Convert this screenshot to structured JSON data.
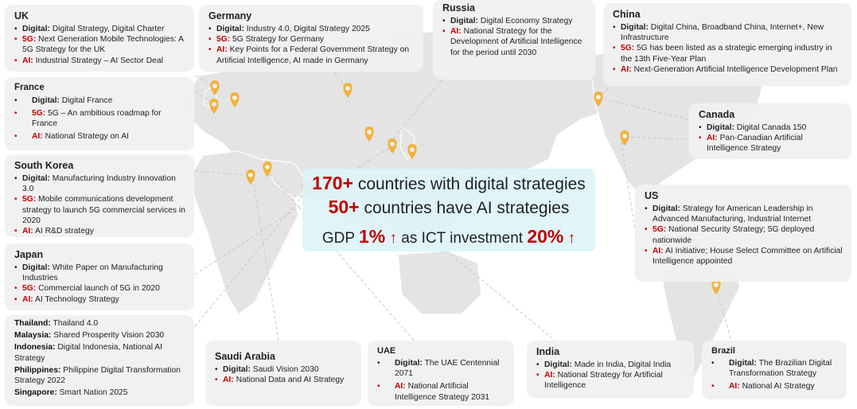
{
  "countries": {
    "uk": {
      "name": "UK",
      "items": [
        {
          "key": "Digital:",
          "text": "Digital Strategy, Digital Charter"
        },
        {
          "key": "5G:",
          "text": "Next Generation Mobile Technologies: A 5G Strategy for the UK"
        },
        {
          "key": "AI:",
          "text": "Industrial Strategy – AI Sector Deal"
        }
      ]
    },
    "germany": {
      "name": "Germany",
      "items": [
        {
          "key": "Digital:",
          "text": "Industry 4.0, Digital Strategy 2025"
        },
        {
          "key": "5G:",
          "text": "5G Strategy for Germany"
        },
        {
          "key": "AI:",
          "text": "Key Points for a Federal Government Strategy on Artificial Intelligence, AI made in Germany"
        }
      ]
    },
    "russia": {
      "name": "Russia",
      "items": [
        {
          "key": "Digital:",
          "text": "Digital Economy Strategy"
        },
        {
          "key": "AI:",
          "text": "National Strategy for the Development of Artificial Intelligence for the period until 2030"
        }
      ]
    },
    "china": {
      "name": "China",
      "items": [
        {
          "key": "Digital:",
          "text": "Digital China, Broadband China, Internet+, New Infrastructure"
        },
        {
          "key": "5G:",
          "text": "5G has been listed as a strategic emerging industry in the 13th Five-Year Plan"
        },
        {
          "key": "AI:",
          "text": "Next-Generation Artificial Intelligence Development Plan"
        }
      ]
    },
    "france": {
      "name": "France",
      "items": [
        {
          "key": "Digital:",
          "text": "Digital France"
        },
        {
          "key": "5G:",
          "text": "5G – An ambitious roadmap for France"
        },
        {
          "key": "AI:",
          "text": "National Strategy on AI"
        }
      ]
    },
    "canada": {
      "name": "Canada",
      "items": [
        {
          "key": "Digital:",
          "text": "Digital Canada 150"
        },
        {
          "key": "AI:",
          "text": "Pan-Canadian Artificial Intelligence Strategy"
        }
      ]
    },
    "south_korea": {
      "name": "South Korea",
      "items": [
        {
          "key": "Digital:",
          "text": "Manufacturing Industry Innovation 3.0"
        },
        {
          "key": "5G:",
          "text": "Mobile communications development strategy to launch 5G commercial services in 2020"
        },
        {
          "key": "AI:",
          "text": "AI R&D strategy"
        }
      ]
    },
    "us": {
      "name": "US",
      "items": [
        {
          "key": "Digital:",
          "text": "Strategy for American Leadership in Advanced Manufacturing, Industrial Internet"
        },
        {
          "key": "5G:",
          "text": "National Security Strategy; 5G deployed nationwide"
        },
        {
          "key": "AI:",
          "text": "AI Initiative; House Select Committee on Artificial Intelligence appointed"
        }
      ]
    },
    "japan": {
      "name": "Japan",
      "items": [
        {
          "key": "Digital:",
          "text": "White Paper on Manufacturing Industries"
        },
        {
          "key": "5G:",
          "text": "Commercial launch of 5G in 2020"
        },
        {
          "key": "AI:",
          "text": "AI Technology Strategy"
        }
      ]
    },
    "saudi_arabia": {
      "name": "Saudi Arabia",
      "items": [
        {
          "key": "Digital:",
          "text": "Saudi Vision 2030"
        },
        {
          "key": "AI:",
          "text": "National Data and AI Strategy"
        }
      ]
    },
    "uae": {
      "name": "UAE",
      "items": [
        {
          "key": "Digital:",
          "text": "The UAE Centennial 2071"
        },
        {
          "key": "AI:",
          "text": "National Artificial Intelligence Strategy 2031"
        }
      ]
    },
    "india": {
      "name": "India",
      "items": [
        {
          "key": "Digital:",
          "text": "Made in India, Digital India"
        },
        {
          "key": "AI:",
          "text": "National Strategy for Artificial Intelligence"
        }
      ]
    },
    "brazil": {
      "name": "Brazil",
      "items": [
        {
          "key": "Digital:",
          "text": "The Brazilian Digital Transformation Strategy"
        },
        {
          "key": "AI:",
          "text": "National AI Strategy"
        }
      ]
    }
  },
  "asean": [
    {
      "key": "Thailand:",
      "text": "Thailand 4.0"
    },
    {
      "key": "Malaysia:",
      "text": "Shared Prosperity Vision 2030"
    },
    {
      "key": "Indonesia:",
      "text": "Digital Indonesia, National AI Strategy"
    },
    {
      "key": "Philippines:",
      "text": "Philippine Digital Transformation Strategy 2022"
    },
    {
      "key": "Singapore:",
      "text": "Smart Nation 2025"
    }
  ],
  "summary": {
    "digital_count": "170+",
    "digital_text": "countries with digital strategies",
    "ai_count": "50+",
    "ai_text": "countries have AI strategies",
    "gdp_label": "GDP",
    "gdp_value": "1%",
    "arrow": "↑",
    "ict_text": "as ICT investment",
    "ict_value": "20%"
  },
  "colors": {
    "accent_red": "#c00000",
    "pin": "#f3b23c",
    "land": "#e6e6e6",
    "card": "#f0f0f0",
    "center_box": "#def3fa"
  },
  "icons": {
    "pin": "map-pin-icon"
  }
}
